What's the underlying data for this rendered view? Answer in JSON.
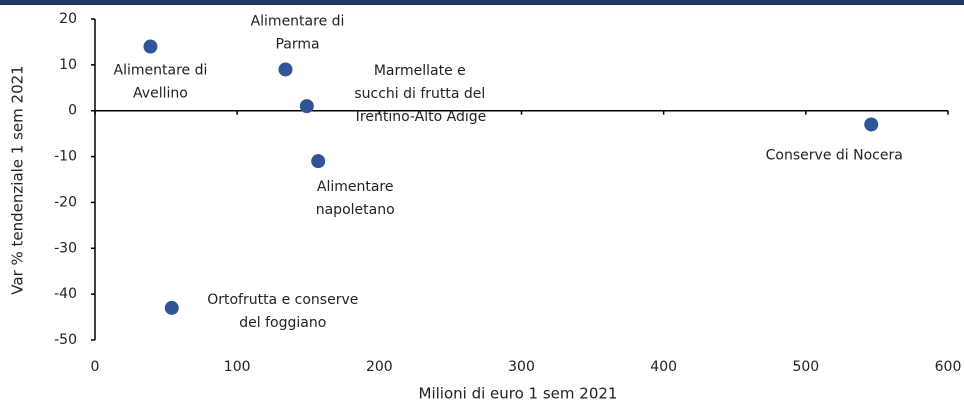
{
  "chart_data": {
    "type": "scatter",
    "x_label": "Milioni di euro 1 sem 2021",
    "y_label": "Var % tendenziale 1 sem 2021",
    "points": [
      {
        "label": [
          "Alimentare di",
          "Avellino"
        ],
        "x": 39,
        "y": 14
      },
      {
        "label": [
          "Alimentare di",
          "Parma"
        ],
        "x": 134,
        "y": 9
      },
      {
        "label": [
          "Marmellate e",
          "succhi di frutta del",
          "Trentino-Alto Adige"
        ],
        "x": 149,
        "y": 1
      },
      {
        "label": [
          "Alimentare",
          "napoletano"
        ],
        "x": 157,
        "y": -11
      },
      {
        "label": [
          "Ortofrutta e conserve",
          "del foggiano"
        ],
        "x": 54,
        "y": -43
      },
      {
        "label": [
          "Conserve di Nocera"
        ],
        "x": 546,
        "y": -3
      }
    ],
    "color": "#2f5597",
    "xlim": [
      0,
      600
    ],
    "xticks": [
      0,
      100,
      200,
      300,
      400,
      500,
      600
    ],
    "ylim": [
      -50,
      20
    ],
    "yticks": [
      -50,
      -40,
      -30,
      -20,
      -10,
      0,
      10,
      20
    ],
    "grid": false
  }
}
